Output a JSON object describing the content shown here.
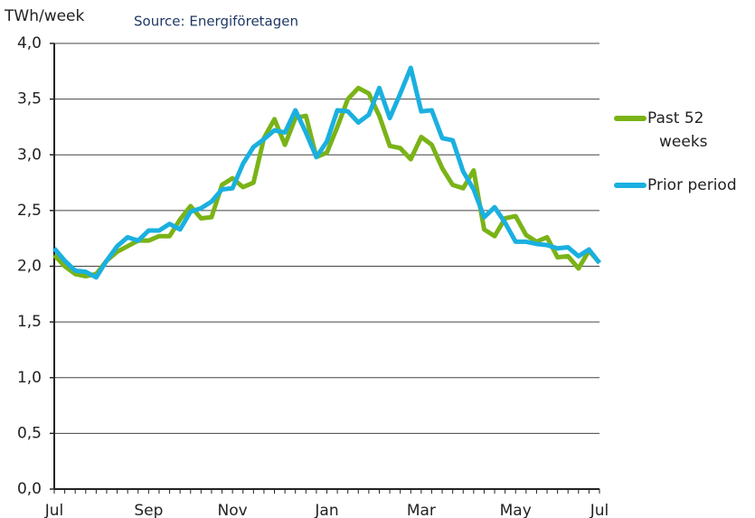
{
  "chart_data": {
    "type": "line",
    "y_label": "TWh/week",
    "source": "Source: Energiföretagen",
    "categories": [
      "Jul",
      null,
      null,
      null,
      null,
      null,
      null,
      null,
      null,
      "Sep",
      null,
      null,
      null,
      null,
      null,
      null,
      null,
      "Nov",
      null,
      null,
      null,
      null,
      null,
      null,
      null,
      null,
      "Jan",
      null,
      null,
      null,
      null,
      null,
      null,
      null,
      null,
      "Mar",
      null,
      null,
      null,
      null,
      null,
      null,
      null,
      null,
      "May",
      null,
      null,
      null,
      null,
      null,
      null,
      null,
      "Jul"
    ],
    "series": [
      {
        "name": "Past 52 weeks",
        "color": "#7ab317",
        "values": [
          2.1,
          2.0,
          1.93,
          1.91,
          1.93,
          2.05,
          2.13,
          2.18,
          2.23,
          2.23,
          2.27,
          2.27,
          2.42,
          2.54,
          2.43,
          2.44,
          2.73,
          2.79,
          2.71,
          2.75,
          3.15,
          3.32,
          3.09,
          3.33,
          3.35,
          2.98,
          3.02,
          3.25,
          3.5,
          3.6,
          3.55,
          3.35,
          3.08,
          3.06,
          2.96,
          3.16,
          3.09,
          2.88,
          2.73,
          2.7,
          2.86,
          2.33,
          2.27,
          2.43,
          2.45,
          2.28,
          2.22,
          2.26,
          2.08,
          2.09,
          1.98,
          2.14,
          2.03
        ]
      },
      {
        "name": "Prior period",
        "color": "#1ab0e0",
        "values": [
          2.16,
          2.05,
          1.96,
          1.95,
          1.9,
          2.05,
          2.18,
          2.26,
          2.23,
          2.32,
          2.32,
          2.38,
          2.33,
          2.49,
          2.52,
          2.58,
          2.69,
          2.7,
          2.92,
          3.07,
          3.14,
          3.22,
          3.2,
          3.4,
          3.2,
          2.98,
          3.12,
          3.4,
          3.39,
          3.29,
          3.36,
          3.6,
          3.33,
          3.55,
          3.78,
          3.39,
          3.4,
          3.15,
          3.13,
          2.85,
          2.69,
          2.44,
          2.53,
          2.39,
          2.22,
          2.22,
          2.2,
          2.19,
          2.16,
          2.17,
          2.09,
          2.15,
          2.03
        ]
      }
    ],
    "ylim": [
      0,
      4
    ],
    "yticks": [
      {
        "value": 0,
        "label": "0,0"
      },
      {
        "value": 0.5,
        "label": "0,5"
      },
      {
        "value": 1,
        "label": "1,0"
      },
      {
        "value": 1.5,
        "label": "1,5"
      },
      {
        "value": 2,
        "label": "2,0"
      },
      {
        "value": 2.5,
        "label": "2,5"
      },
      {
        "value": 3,
        "label": "3,0"
      },
      {
        "value": 3.5,
        "label": "3,5"
      },
      {
        "value": 4,
        "label": "4,0"
      }
    ],
    "grid": true,
    "legend": "right"
  }
}
